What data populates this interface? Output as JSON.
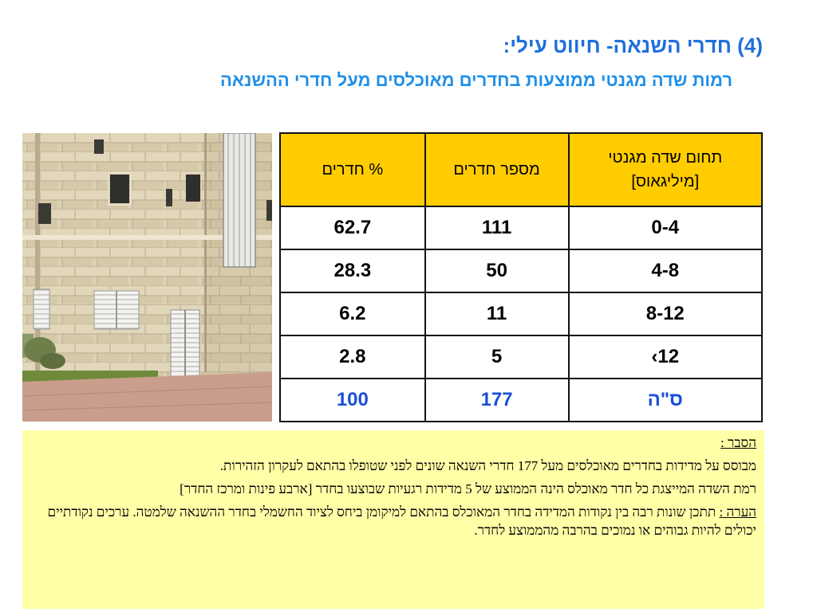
{
  "header": {
    "title": "(4) חדרי השנאה- חיווט עילי:",
    "subtitle": "רמות שדה מגנטי ממוצעות בחדרים  מאוכלסים מעל חדרי ההשנאה"
  },
  "table": {
    "headers": {
      "range_line1": "תחום שדה מגנטי",
      "range_line2": "[מיליגאוס]",
      "count": "מספר חדרים",
      "percent": "% חדרים"
    },
    "rows": [
      {
        "range": "0-4",
        "count": "111",
        "percent": "62.7"
      },
      {
        "range": "4-8",
        "count": "50",
        "percent": "28.3"
      },
      {
        "range": "8-12",
        "count": "11",
        "percent": "6.2"
      },
      {
        "range": "12›",
        "count": "5",
        "percent": "2.8"
      },
      {
        "range": "ס\"ה",
        "count": "177",
        "percent": "100"
      }
    ]
  },
  "note": {
    "explanation_label": "הסבר :",
    "paragraph1": "מבוסס על מדידות בחדרים מאוכלסים מעל 177 חדרי השנאה שונים לפני שטופלו בהתאם לעקרון הזהירות.",
    "paragraph2": "רמת  השדה המייצגת כל חדר מאוכלס הינה הממוצע של  5  מדידות רגעיות שבוצעו בחדר [ארבע פינות ומרכז החדר]",
    "remark_label": "הערה :",
    "remark_text": " תתכן שונות רבה בין   נקודות המדידה בחדר המאוכלס בהתאם למיקומן ביחס לציוד החשמלי בחדר ההשנאה שלמטה. ערכים נקודתיים יכולים להיות גבוהים או נמוכים בהרבה מהממוצע לחדר."
  },
  "colors": {
    "title": "#1f6fdc",
    "subtitle": "#1f8fe8",
    "table_header_bg": "#ffcc00",
    "total_row_text": "#1a4fd6",
    "note_bg": "#ffffa8"
  }
}
